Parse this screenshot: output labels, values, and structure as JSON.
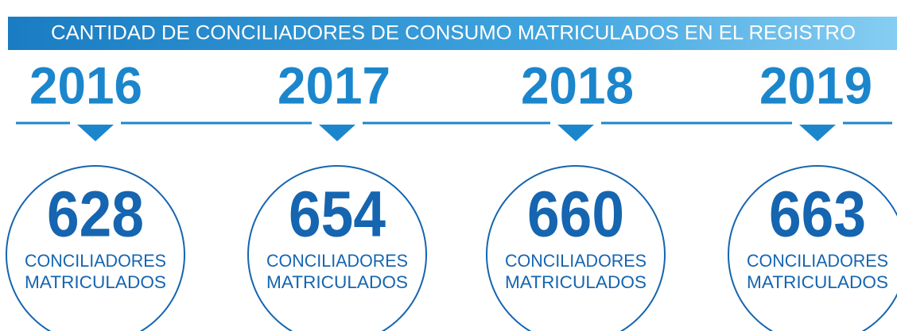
{
  "header": {
    "title": "CANTIDAD DE CONCILIADORES DE CONSUMO MATRICULADOS EN EL REGISTRO"
  },
  "items": [
    {
      "year": 2016,
      "count": 628,
      "label_lines": [
        "CONCILIADORES",
        "MATRICULADOS"
      ]
    },
    {
      "year": 2017,
      "count": 654,
      "label_lines": [
        "CONCILIADORES",
        "MATRICULADOS"
      ]
    },
    {
      "year": 2018,
      "count": 660,
      "label_lines": [
        "CONCILIADORES",
        "MATRICULADOS"
      ]
    },
    {
      "year": 2019,
      "count": 663,
      "label_lines": [
        "CONCILIADORES",
        "MATRICULADOS"
      ]
    }
  ]
}
